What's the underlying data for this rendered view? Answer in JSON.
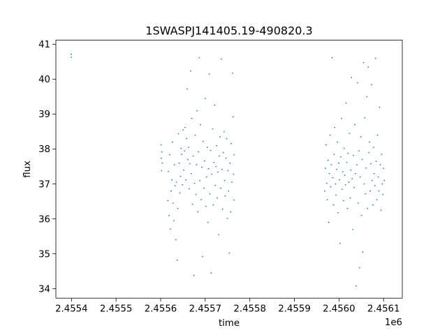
{
  "chart_data": {
    "type": "scatter",
    "title": "1SWASPJ141405.19-490820.3",
    "xlabel": "time",
    "ylabel": "flux",
    "x_offset_label": "1e6",
    "x_tick_labels": [
      "2.4554",
      "2.4555",
      "2.4556",
      "2.4557",
      "2.4558",
      "2.4559",
      "2.4560",
      "2.4561"
    ],
    "y_tick_labels": [
      "34",
      "35",
      "36",
      "37",
      "38",
      "39",
      "40",
      "41"
    ],
    "x_ticks": [
      2455400,
      2455500,
      2455600,
      2455700,
      2455800,
      2455900,
      2456000,
      2456100
    ],
    "y_ticks": [
      34,
      35,
      36,
      37,
      38,
      39,
      40,
      41
    ],
    "xlim": [
      2455365,
      2456142
    ],
    "ylim": [
      33.73,
      41.12
    ],
    "grid": false,
    "marker_color": "#1f77b4",
    "series": [
      {
        "points": [
          [
            2455399.5,
            40.72
          ],
          [
            2455399.8,
            40.63
          ],
          [
            2455601.0,
            38.12
          ],
          [
            2455601.5,
            37.74
          ],
          [
            2455602.0,
            37.38
          ],
          [
            2455602.8,
            37.92
          ],
          [
            2455603.5,
            37.6
          ],
          [
            2455616.0,
            36.52
          ],
          [
            2455617.5,
            37.36
          ],
          [
            2455619.0,
            36.1
          ],
          [
            2455620.5,
            37.84
          ],
          [
            2455622.0,
            35.71
          ],
          [
            2455623.5,
            36.8
          ],
          [
            2455625.0,
            37.12
          ],
          [
            2455626.5,
            38.2
          ],
          [
            2455628.0,
            36.45
          ],
          [
            2455629.5,
            35.95
          ],
          [
            2455631.0,
            37.55
          ],
          [
            2455632.5,
            36.95
          ],
          [
            2455634.0,
            35.4
          ],
          [
            2455635.5,
            37.05
          ],
          [
            2455637.0,
            34.82
          ],
          [
            2455638.5,
            36.3
          ],
          [
            2455640.0,
            38.44
          ],
          [
            2455641.5,
            37.6
          ],
          [
            2455643.0,
            36.74
          ],
          [
            2455644.5,
            37.22
          ],
          [
            2455646.0,
            38.02
          ],
          [
            2455647.5,
            37.85
          ],
          [
            2455649.0,
            36.98
          ],
          [
            2455650.5,
            38.55
          ],
          [
            2455652.0,
            37.4
          ],
          [
            2455653.5,
            37.95
          ],
          [
            2455655.0,
            38.62
          ],
          [
            2455656.5,
            37.12
          ],
          [
            2455658.0,
            38.3
          ],
          [
            2455659.5,
            39.72
          ],
          [
            2455661.0,
            37.7
          ],
          [
            2455662.5,
            38.05
          ],
          [
            2455664.0,
            36.86
          ],
          [
            2455665.5,
            37.58
          ],
          [
            2455667.0,
            40.24
          ],
          [
            2455668.5,
            37.3
          ],
          [
            2455670.0,
            38.88
          ],
          [
            2455671.5,
            36.42
          ],
          [
            2455673.0,
            37.8
          ],
          [
            2455674.5,
            34.38
          ],
          [
            2455676.0,
            37.02
          ],
          [
            2455677.5,
            38.4
          ],
          [
            2455679.0,
            36.7
          ],
          [
            2455680.5,
            37.55
          ],
          [
            2455682.0,
            39.1
          ],
          [
            2455683.5,
            36.2
          ],
          [
            2455685.0,
            37.92
          ],
          [
            2455686.5,
            40.62
          ],
          [
            2455688.0,
            37.1
          ],
          [
            2455689.5,
            38.7
          ],
          [
            2455691.0,
            36.55
          ],
          [
            2455692.5,
            37.48
          ],
          [
            2455694.0,
            34.92
          ],
          [
            2455695.5,
            38.22
          ],
          [
            2455697.0,
            36.88
          ],
          [
            2455698.5,
            37.66
          ],
          [
            2455700.0,
            39.45
          ],
          [
            2455701.5,
            36.36
          ],
          [
            2455703.0,
            37.2
          ],
          [
            2455704.5,
            38.05
          ],
          [
            2455706.0,
            35.9
          ],
          [
            2455707.5,
            37.44
          ],
          [
            2455709.0,
            40.15
          ],
          [
            2455710.5,
            36.72
          ],
          [
            2455712.0,
            37.96
          ],
          [
            2455713.5,
            34.45
          ],
          [
            2455715.0,
            37.28
          ],
          [
            2455716.5,
            38.58
          ],
          [
            2455718.0,
            36.4
          ],
          [
            2455719.5,
            37.62
          ],
          [
            2455721.0,
            39.26
          ],
          [
            2455722.5,
            36.96
          ],
          [
            2455724.0,
            37.5
          ],
          [
            2455725.5,
            38.1
          ],
          [
            2455727.0,
            36.6
          ],
          [
            2455728.5,
            37.34
          ],
          [
            2455730.0,
            35.55
          ],
          [
            2455731.5,
            37.8
          ],
          [
            2455733.0,
            38.35
          ],
          [
            2455734.5,
            36.88
          ],
          [
            2455736.0,
            40.58
          ],
          [
            2455737.5,
            37.42
          ],
          [
            2455739.0,
            36.28
          ],
          [
            2455740.5,
            37.9
          ],
          [
            2455742.0,
            38.5
          ],
          [
            2455743.5,
            37.1
          ],
          [
            2455745.0,
            36.66
          ],
          [
            2455746.5,
            37.74
          ],
          [
            2455748.0,
            38.3
          ],
          [
            2455749.5,
            36.02
          ],
          [
            2455751.0,
            37.38
          ],
          [
            2455752.5,
            36.8
          ],
          [
            2455754.0,
            35.02
          ],
          [
            2455755.5,
            37.6
          ],
          [
            2455757.0,
            36.2
          ],
          [
            2455758.5,
            38.16
          ],
          [
            2455760.0,
            37.05
          ],
          [
            2455761.5,
            40.18
          ],
          [
            2455762.5,
            38.92
          ],
          [
            2455763.5,
            37.28
          ],
          [
            2455764.5,
            36.54
          ],
          [
            2455765.0,
            37.84
          ],
          [
            2455968.0,
            36.8
          ],
          [
            2455969.5,
            37.45
          ],
          [
            2455971.0,
            38.12
          ],
          [
            2455972.5,
            37.02
          ],
          [
            2455974.0,
            36.55
          ],
          [
            2455975.5,
            37.68
          ],
          [
            2455977.0,
            35.9
          ],
          [
            2455978.5,
            37.3
          ],
          [
            2455980.0,
            38.4
          ],
          [
            2455981.5,
            36.92
          ],
          [
            2455983.0,
            37.55
          ],
          [
            2455984.5,
            40.62
          ],
          [
            2455986.0,
            37.18
          ],
          [
            2455987.5,
            36.4
          ],
          [
            2455989.0,
            37.85
          ],
          [
            2455990.5,
            38.62
          ],
          [
            2455992.0,
            37.0
          ],
          [
            2455993.5,
            36.68
          ],
          [
            2455995.0,
            37.42
          ],
          [
            2455996.5,
            38.2
          ],
          [
            2455998.0,
            36.18
          ],
          [
            2455999.5,
            37.6
          ],
          [
            2456001.0,
            37.12
          ],
          [
            2456002.5,
            35.3
          ],
          [
            2456004.0,
            37.78
          ],
          [
            2456005.5,
            38.88
          ],
          [
            2456007.0,
            36.85
          ],
          [
            2456008.5,
            37.35
          ],
          [
            2456010.0,
            36.52
          ],
          [
            2456011.5,
            38.02
          ],
          [
            2456013.0,
            37.25
          ],
          [
            2456014.5,
            36.98
          ],
          [
            2456016.0,
            39.32
          ],
          [
            2456017.5,
            37.62
          ],
          [
            2456019.0,
            36.3
          ],
          [
            2456020.5,
            37.88
          ],
          [
            2456022.0,
            37.05
          ],
          [
            2456023.5,
            38.45
          ],
          [
            2456025.0,
            36.6
          ],
          [
            2456026.5,
            37.4
          ],
          [
            2456028.0,
            40.05
          ],
          [
            2456029.5,
            37.15
          ],
          [
            2456031.0,
            35.7
          ],
          [
            2456032.5,
            37.82
          ],
          [
            2456034.0,
            36.9
          ],
          [
            2456035.5,
            38.7
          ],
          [
            2456037.0,
            37.3
          ],
          [
            2456038.5,
            34.08
          ],
          [
            2456040.0,
            37.55
          ],
          [
            2456041.5,
            39.9
          ],
          [
            2456043.0,
            36.45
          ],
          [
            2456044.5,
            37.95
          ],
          [
            2456046.0,
            34.6
          ],
          [
            2456047.5,
            37.2
          ],
          [
            2456049.0,
            38.35
          ],
          [
            2456050.5,
            36.1
          ],
          [
            2456052.0,
            37.7
          ],
          [
            2456053.5,
            35.05
          ],
          [
            2456055.0,
            40.48
          ],
          [
            2456056.5,
            37.0
          ],
          [
            2456058.0,
            38.9
          ],
          [
            2456059.5,
            36.72
          ],
          [
            2456061.0,
            37.46
          ],
          [
            2456062.5,
            39.5
          ],
          [
            2456064.0,
            36.3
          ],
          [
            2456065.5,
            40.35
          ],
          [
            2456067.0,
            37.9
          ],
          [
            2456068.5,
            38.2
          ],
          [
            2456070.0,
            36.8
          ],
          [
            2456071.5,
            37.58
          ],
          [
            2456073.0,
            39.85
          ],
          [
            2456074.5,
            37.1
          ],
          [
            2456076.0,
            36.4
          ],
          [
            2456077.5,
            38.05
          ],
          [
            2456079.0,
            37.3
          ],
          [
            2456080.5,
            36.95
          ],
          [
            2456082.0,
            40.6
          ],
          [
            2456083.5,
            37.65
          ],
          [
            2456085.0,
            36.55
          ],
          [
            2456086.5,
            38.4
          ],
          [
            2456088.0,
            37.2
          ],
          [
            2456089.5,
            36.8
          ],
          [
            2456091.0,
            39.2
          ],
          [
            2456092.5,
            37.55
          ],
          [
            2456094.0,
            36.25
          ],
          [
            2456095.5,
            37.85
          ],
          [
            2456097.0,
            37.0
          ],
          [
            2456098.5,
            36.7
          ],
          [
            2456100.0,
            37.45
          ],
          [
            2456101.5,
            37.1
          ]
        ]
      }
    ]
  }
}
